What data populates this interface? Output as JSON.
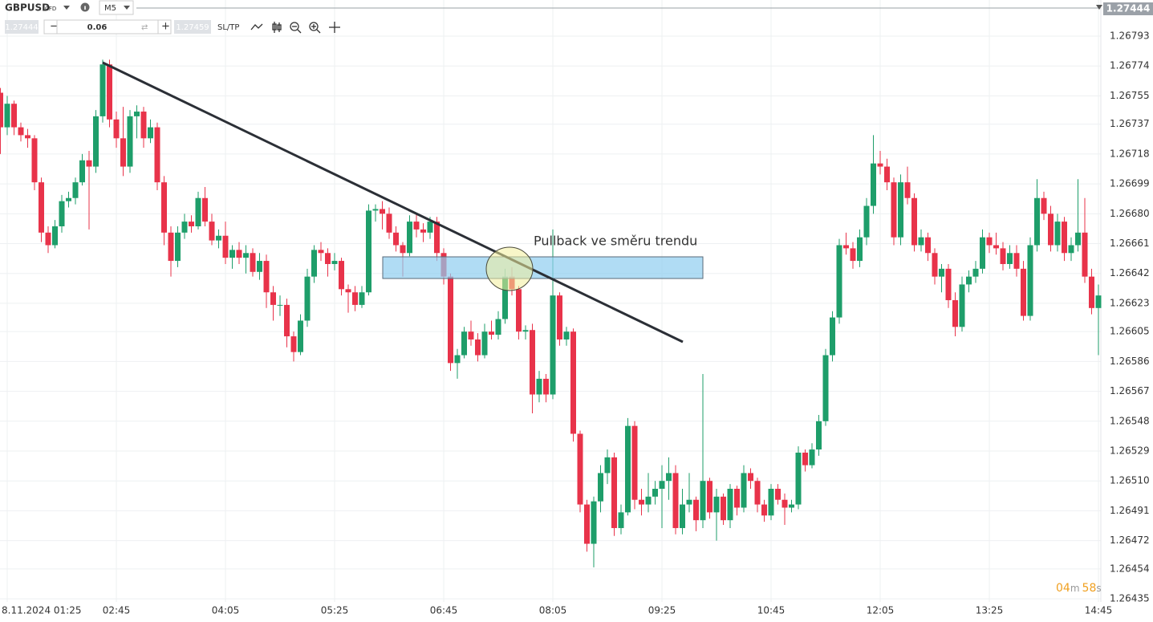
{
  "toolbar": {
    "symbol": "GBPUSD",
    "symbol_type": "CFD",
    "timeframe": "M5",
    "sell_price": "1.27444",
    "volume": "0.06",
    "buy_price": "1.27459",
    "sl_tp": "SL/TP"
  },
  "timer": {
    "minutes": "04",
    "minutes_unit": "m",
    "seconds": "58",
    "seconds_unit": "s"
  },
  "chart_data": {
    "type": "candlestick",
    "annotation": "Pullback ve směru trendu",
    "price_tag": "1.27444",
    "up_color": "#1e9e6a",
    "down_color": "#e8334a",
    "grid": true,
    "ylim": [
      1.26433,
      1.26816
    ],
    "yticks": [
      1.26793,
      1.26774,
      1.26755,
      1.26737,
      1.26718,
      1.26699,
      {
        "value": 1.2668,
        "label": "1.26680"
      },
      1.26661,
      1.26642,
      1.26623,
      1.26605,
      1.26586,
      1.26567,
      1.26548,
      1.26529,
      {
        "value": 1.2651,
        "label": "1.26510"
      },
      1.26491,
      1.26472,
      1.26454,
      1.26435
    ],
    "xticks": [
      {
        "value": "01:25",
        "label": "8.11.2024 01:25"
      },
      "02:45",
      "04:05",
      "05:25",
      "06:45",
      "08:05",
      "09:25",
      "10:45",
      "12:05",
      "13:25",
      "14:45"
    ],
    "x": [
      "01:20",
      "01:25",
      "01:30",
      "01:35",
      "01:40",
      "01:45",
      "01:50",
      "01:55",
      "02:00",
      "02:05",
      "02:10",
      "02:15",
      "02:20",
      "02:25",
      "02:30",
      "02:35",
      "02:40",
      "02:45",
      "02:50",
      "02:55",
      "03:00",
      "03:05",
      "03:10",
      "03:15",
      "03:20",
      "03:25",
      "03:30",
      "03:35",
      "03:40",
      "03:45",
      "03:50",
      "03:55",
      "04:00",
      "04:05",
      "04:10",
      "04:15",
      "04:20",
      "04:25",
      "04:30",
      "04:35",
      "04:40",
      "04:45",
      "04:50",
      "04:55",
      "05:00",
      "05:05",
      "05:10",
      "05:15",
      "05:20",
      "05:25",
      "05:30",
      "05:35",
      "05:40",
      "05:45",
      "05:50",
      "05:55",
      "06:00",
      "06:05",
      "06:10",
      "06:15",
      "06:20",
      "06:25",
      "06:30",
      "06:35",
      "06:40",
      "06:45",
      "06:50",
      "06:55",
      "07:00",
      "07:05",
      "07:10",
      "07:15",
      "07:20",
      "07:25",
      "07:30",
      "07:35",
      "07:40",
      "07:45",
      "07:50",
      "07:55",
      "08:00",
      "08:05",
      "08:10",
      "08:15",
      "08:20",
      "08:25",
      "08:30",
      "08:35",
      "08:40",
      "08:45",
      "08:50",
      "08:55",
      "09:00",
      "09:05",
      "09:10",
      "09:15",
      "09:20",
      "09:25",
      "09:30",
      "09:35",
      "09:40",
      "09:45",
      "09:50",
      "09:55",
      "10:00",
      "10:05",
      "10:10",
      "10:15",
      "10:20",
      "10:25",
      "10:30",
      "10:35",
      "10:40",
      "10:45",
      "10:50",
      "10:55",
      "11:00",
      "11:05",
      "11:10",
      "11:15",
      "11:20",
      "11:25",
      "11:30",
      "11:35",
      "11:40",
      "11:45",
      "11:50",
      "11:55",
      "12:00",
      "12:05",
      "12:10",
      "12:15",
      "12:20",
      "12:25",
      "12:30",
      "12:35",
      "12:40",
      "12:45",
      "12:50",
      "12:55",
      "13:00",
      "13:05",
      "13:10",
      "13:15",
      "13:20",
      "13:25",
      "13:30",
      "13:35",
      "13:40",
      "13:45",
      "13:50",
      "13:55",
      "14:00",
      "14:05",
      "14:10",
      "14:15",
      "14:20",
      "14:25",
      "14:30",
      "14:35",
      "14:40",
      "14:45"
    ],
    "open": [
      1.26757,
      1.26735,
      1.2675,
      1.26735,
      1.2673,
      1.26728,
      1.267,
      1.26668,
      1.2666,
      1.26672,
      1.26688,
      1.2669,
      1.267,
      1.26714,
      1.2671,
      1.26742,
      1.26775,
      1.2674,
      1.26728,
      1.2671,
      1.26742,
      1.26745,
      1.26728,
      1.26735,
      1.267,
      1.26668,
      1.2665,
      1.26668,
      1.26675,
      1.26672,
      1.2669,
      1.26675,
      1.26663,
      1.26666,
      1.26652,
      1.26657,
      1.26652,
      1.26655,
      1.26643,
      1.2665,
      1.2663,
      1.26622,
      1.26622,
      1.26602,
      1.26592,
      1.26612,
      1.2664,
      1.26657,
      1.26655,
      1.26648,
      1.2665,
      1.26632,
      1.2663,
      1.26622,
      1.2663,
      1.26682,
      1.26683,
      1.2668,
      1.26668,
      1.2666,
      1.26655,
      1.26675,
      1.2667,
      1.26668,
      1.26675,
      1.26655,
      1.2664,
      1.26585,
      1.2659,
      1.26605,
      1.266,
      1.2659,
      1.26605,
      1.26603,
      1.26613,
      1.2664,
      1.26632,
      1.26605,
      1.26606,
      1.26565,
      1.26575,
      1.26565,
      1.26628,
      1.266,
      1.26605,
      1.2654,
      1.26495,
      1.2647,
      1.26497,
      1.26515,
      1.26525,
      1.2648,
      1.2649,
      1.26545,
      1.26498,
      1.26495,
      1.265,
      1.26505,
      1.2651,
      1.26515,
      1.2648,
      1.26495,
      1.26498,
      1.26485,
      1.2651,
      1.2649,
      1.265,
      1.26485,
      1.26505,
      1.26493,
      1.26515,
      1.2651,
      1.26495,
      1.26488,
      1.26505,
      1.26498,
      1.26493,
      1.26495,
      1.26528,
      1.2652,
      1.2653,
      1.26548,
      1.2659,
      1.26614,
      1.2666,
      1.26658,
      1.2665,
      1.26665,
      1.26685,
      1.26712,
      1.2671,
      1.267,
      1.26665,
      1.267,
      1.2669,
      1.2666,
      1.26665,
      1.26655,
      1.2664,
      1.26645,
      1.26625,
      1.26608,
      1.26635,
      1.2664,
      1.26645,
      1.26665,
      1.2666,
      1.26658,
      1.26648,
      1.26655,
      1.26645,
      1.26615,
      1.2666,
      1.2669,
      1.2668,
      1.2666,
      1.26675,
      1.26655,
      1.2666,
      1.26668,
      1.2664,
      1.2662
    ],
    "high": [
      1.2676,
      1.26755,
      1.26752,
      1.26738,
      1.26734,
      1.2673,
      1.26703,
      1.26672,
      1.26676,
      1.26692,
      1.26694,
      1.26703,
      1.26718,
      1.2672,
      1.26746,
      1.26778,
      1.26778,
      1.26745,
      1.26748,
      1.26746,
      1.26749,
      1.26748,
      1.2674,
      1.26738,
      1.26704,
      1.26672,
      1.26672,
      1.2668,
      1.26679,
      1.26694,
      1.26697,
      1.2668,
      1.2667,
      1.26675,
      1.2666,
      1.26662,
      1.2666,
      1.26658,
      1.26655,
      1.26654,
      1.26634,
      1.26628,
      1.26626,
      1.26605,
      1.26616,
      1.26645,
      1.2666,
      1.26662,
      1.26658,
      1.26655,
      1.26652,
      1.26635,
      1.26634,
      1.26634,
      1.26686,
      1.26686,
      1.26688,
      1.26684,
      1.26672,
      1.26662,
      1.26679,
      1.2668,
      1.26674,
      1.26678,
      1.26678,
      1.26658,
      1.26642,
      1.26594,
      1.26608,
      1.26612,
      1.26604,
      1.2661,
      1.26612,
      1.26618,
      1.26645,
      1.26646,
      1.26634,
      1.26609,
      1.2661,
      1.2658,
      1.26578,
      1.2667,
      1.2663,
      1.26608,
      1.26607,
      1.26542,
      1.26498,
      1.265,
      1.2652,
      1.2653,
      1.26528,
      1.26495,
      1.2655,
      1.26548,
      1.26505,
      1.26515,
      1.2651,
      1.2652,
      1.26525,
      1.2652,
      1.26505,
      1.26515,
      1.265,
      1.26578,
      1.26512,
      1.26505,
      1.26502,
      1.26508,
      1.26507,
      1.2652,
      1.26518,
      1.26512,
      1.26498,
      1.26508,
      1.26508,
      1.26502,
      1.26498,
      1.26532,
      1.2653,
      1.26534,
      1.26552,
      1.26594,
      1.26618,
      1.26664,
      1.26668,
      1.26662,
      1.2667,
      1.2669,
      1.2673,
      1.2672,
      1.26715,
      1.26703,
      1.26705,
      1.2671,
      1.26693,
      1.2667,
      1.26668,
      1.26658,
      1.26648,
      1.26648,
      1.2663,
      1.2664,
      1.26644,
      1.2665,
      1.2667,
      1.26668,
      1.26668,
      1.26662,
      1.2666,
      1.2666,
      1.2665,
      1.26665,
      1.26702,
      1.26694,
      1.26685,
      1.2668,
      1.26678,
      1.26665,
      1.26702,
      1.2669,
      1.26645,
      1.26635
    ],
    "low": [
      1.26718,
      1.2673,
      1.2673,
      1.26726,
      1.26722,
      1.26695,
      1.26662,
      1.26655,
      1.26658,
      1.26668,
      1.26684,
      1.26686,
      1.26698,
      1.2667,
      1.26706,
      1.26738,
      1.26735,
      1.26722,
      1.26704,
      1.26706,
      1.26728,
      1.26722,
      1.26725,
      1.26695,
      1.2666,
      1.2664,
      1.26646,
      1.26664,
      1.26668,
      1.2667,
      1.26672,
      1.2666,
      1.26658,
      1.26648,
      1.26645,
      1.26648,
      1.26642,
      1.2664,
      1.26638,
      1.2662,
      1.26612,
      1.26615,
      1.26595,
      1.26586,
      1.2659,
      1.26608,
      1.26636,
      1.2665,
      1.2664,
      1.26644,
      1.26628,
      1.26617,
      1.26618,
      1.2662,
      1.26628,
      1.26675,
      1.2667,
      1.26664,
      1.26656,
      1.2664,
      1.26653,
      1.26665,
      1.26662,
      1.26664,
      1.2665,
      1.26635,
      1.2658,
      1.26575,
      1.26588,
      1.26596,
      1.26586,
      1.26588,
      1.266,
      1.266,
      1.2661,
      1.26628,
      1.266,
      1.266,
      1.26553,
      1.2656,
      1.2656,
      1.26562,
      1.26596,
      1.26596,
      1.26535,
      1.2649,
      1.26465,
      1.26455,
      1.2649,
      1.26508,
      1.26475,
      1.26476,
      1.26488,
      1.26492,
      1.26488,
      1.2649,
      1.26495,
      1.2648,
      1.26498,
      1.26476,
      1.26476,
      1.2649,
      1.26478,
      1.2648,
      1.26486,
      1.26472,
      1.26482,
      1.2648,
      1.26488,
      1.2649,
      1.26505,
      1.2649,
      1.26484,
      1.26485,
      1.26495,
      1.26482,
      1.2649,
      1.26492,
      1.26516,
      1.26518,
      1.26526,
      1.26545,
      1.26586,
      1.2661,
      1.26654,
      1.26645,
      1.26646,
      1.2666,
      1.2668,
      1.26705,
      1.26695,
      1.2666,
      1.2666,
      1.26686,
      1.26656,
      1.26656,
      1.2665,
      1.26635,
      1.2663,
      1.2662,
      1.26602,
      1.26605,
      1.2663,
      1.26636,
      1.26642,
      1.26655,
      1.26654,
      1.26644,
      1.26645,
      1.2664,
      1.26612,
      1.26612,
      1.26656,
      1.26676,
      1.26656,
      1.26656,
      1.2665,
      1.2665,
      1.26656,
      1.26636,
      1.26616,
      1.2659
    ],
    "close": [
      1.26735,
      1.2675,
      1.26735,
      1.2673,
      1.26728,
      1.267,
      1.26668,
      1.2666,
      1.26672,
      1.26688,
      1.2669,
      1.267,
      1.26714,
      1.2671,
      1.26742,
      1.26775,
      1.2674,
      1.26728,
      1.2671,
      1.26742,
      1.26745,
      1.26728,
      1.26735,
      1.267,
      1.26668,
      1.2665,
      1.26668,
      1.26675,
      1.26672,
      1.2669,
      1.26675,
      1.26663,
      1.26666,
      1.26652,
      1.26657,
      1.26652,
      1.26655,
      1.26643,
      1.2665,
      1.2663,
      1.26622,
      1.26622,
      1.26602,
      1.26592,
      1.26612,
      1.2664,
      1.26657,
      1.26655,
      1.26648,
      1.2665,
      1.26632,
      1.2663,
      1.26622,
      1.2663,
      1.26682,
      1.26683,
      1.2668,
      1.26668,
      1.2666,
      1.26655,
      1.26675,
      1.2667,
      1.26668,
      1.26675,
      1.26655,
      1.2664,
      1.26585,
      1.2659,
      1.26605,
      1.266,
      1.2659,
      1.26605,
      1.26603,
      1.26613,
      1.2664,
      1.26632,
      1.26605,
      1.26606,
      1.26565,
      1.26575,
      1.26565,
      1.26628,
      1.266,
      1.26605,
      1.2654,
      1.26495,
      1.2647,
      1.26497,
      1.26515,
      1.26525,
      1.2648,
      1.2649,
      1.26545,
      1.26498,
      1.26495,
      1.265,
      1.26505,
      1.2651,
      1.26515,
      1.2648,
      1.26495,
      1.26498,
      1.26485,
      1.2651,
      1.2649,
      1.265,
      1.26485,
      1.26505,
      1.26493,
      1.26515,
      1.2651,
      1.26495,
      1.26488,
      1.26505,
      1.26498,
      1.26493,
      1.26495,
      1.26528,
      1.2652,
      1.2653,
      1.26548,
      1.2659,
      1.26614,
      1.2666,
      1.26658,
      1.2665,
      1.26665,
      1.26685,
      1.26712,
      1.2671,
      1.267,
      1.26665,
      1.267,
      1.2669,
      1.2666,
      1.26665,
      1.26655,
      1.2664,
      1.26645,
      1.26625,
      1.26608,
      1.26635,
      1.2664,
      1.26645,
      1.26665,
      1.2666,
      1.26658,
      1.26648,
      1.26655,
      1.26645,
      1.26615,
      1.2666,
      1.2669,
      1.2668,
      1.2666,
      1.26675,
      1.26655,
      1.2666,
      1.26668,
      1.2664,
      1.2662,
      1.26628
    ]
  }
}
